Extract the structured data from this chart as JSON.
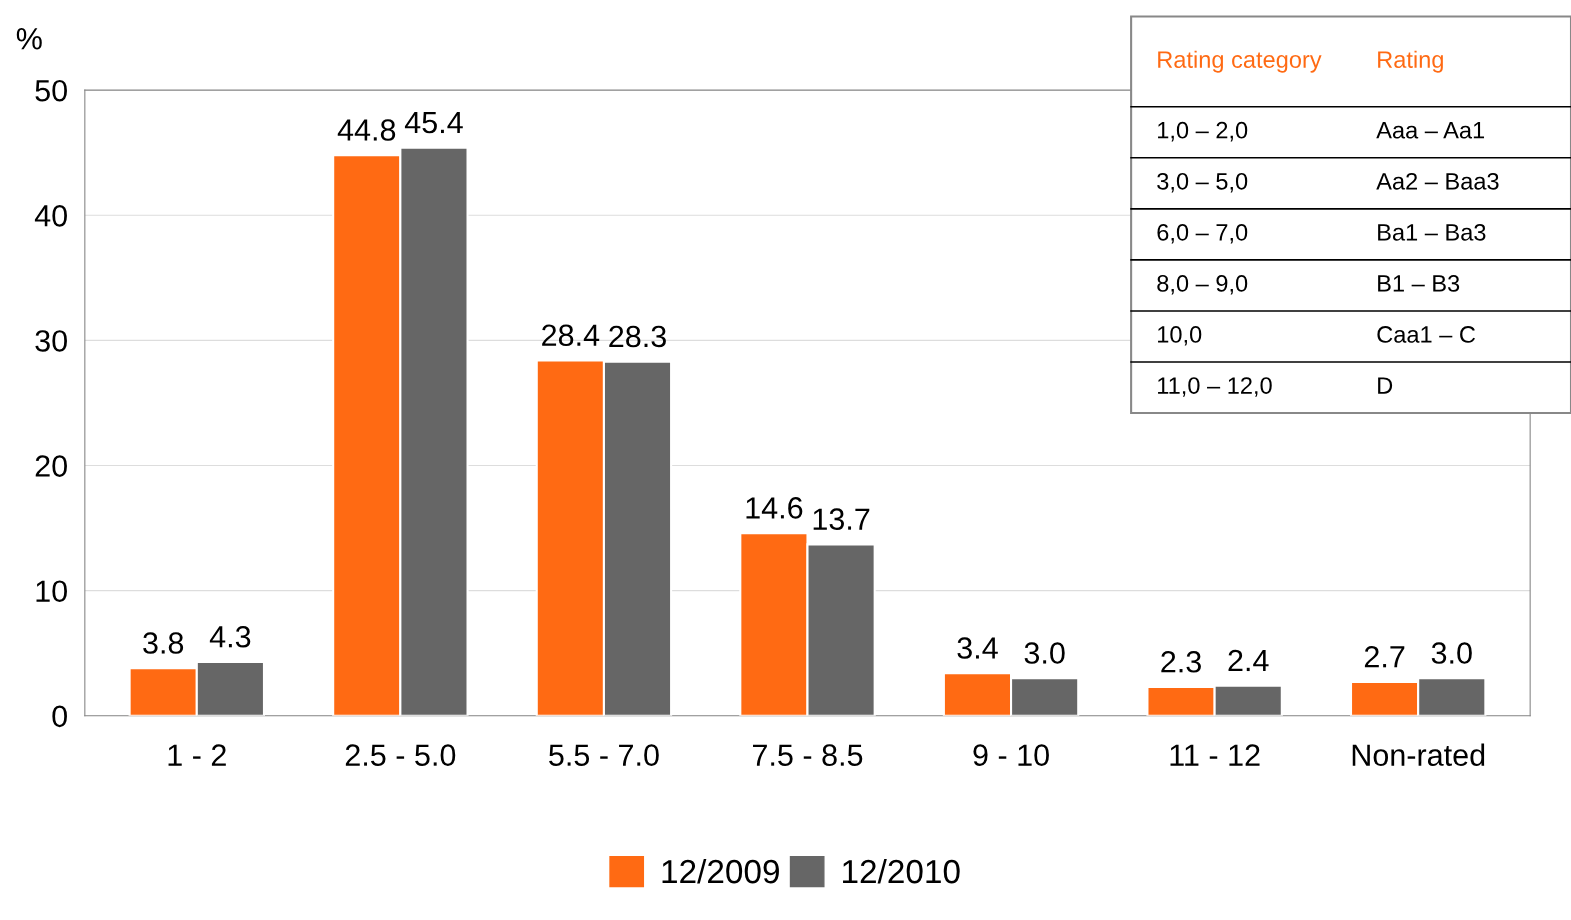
{
  "chart_data": {
    "type": "bar",
    "ylabel": "%",
    "categories": [
      "1 - 2",
      "2.5 - 5.0",
      "5.5 - 7.0",
      "7.5 - 8.5",
      "9 - 10",
      "11 - 12",
      "Non-rated"
    ],
    "series": [
      {
        "name": "12/2009",
        "color": "#ff6a13",
        "values": [
          3.8,
          44.8,
          28.4,
          14.6,
          3.4,
          2.3,
          2.7
        ],
        "value_labels": [
          "3.8",
          "44.8",
          "28.4",
          "14.6",
          "3.4",
          "2.3",
          "2.7"
        ]
      },
      {
        "name": "12/2010",
        "color": "#666666",
        "values": [
          4.3,
          45.4,
          28.3,
          13.7,
          3.0,
          2.4,
          3.0
        ],
        "value_labels": [
          "4.3",
          "45.4",
          "28.3",
          "13.7",
          "3.0",
          "2.4",
          "3.0"
        ]
      }
    ],
    "ylim": [
      0,
      50
    ],
    "yticks": [
      0,
      10,
      20,
      30,
      40,
      50
    ],
    "grid": "y",
    "legend": "bottom",
    "annotations": [
      "Rating category",
      "Rating",
      "1,0 – 2,0",
      "Aaa – Aa1",
      "3,0 – 5,0",
      "Aa2 – Baa3",
      "6,0 – 7,0",
      "Ba1 – Ba3",
      "8,0 – 9,0",
      "B1 – B3",
      "10,0",
      "Caa1 – C",
      "11,0 – 12,0",
      "D"
    ]
  }
}
